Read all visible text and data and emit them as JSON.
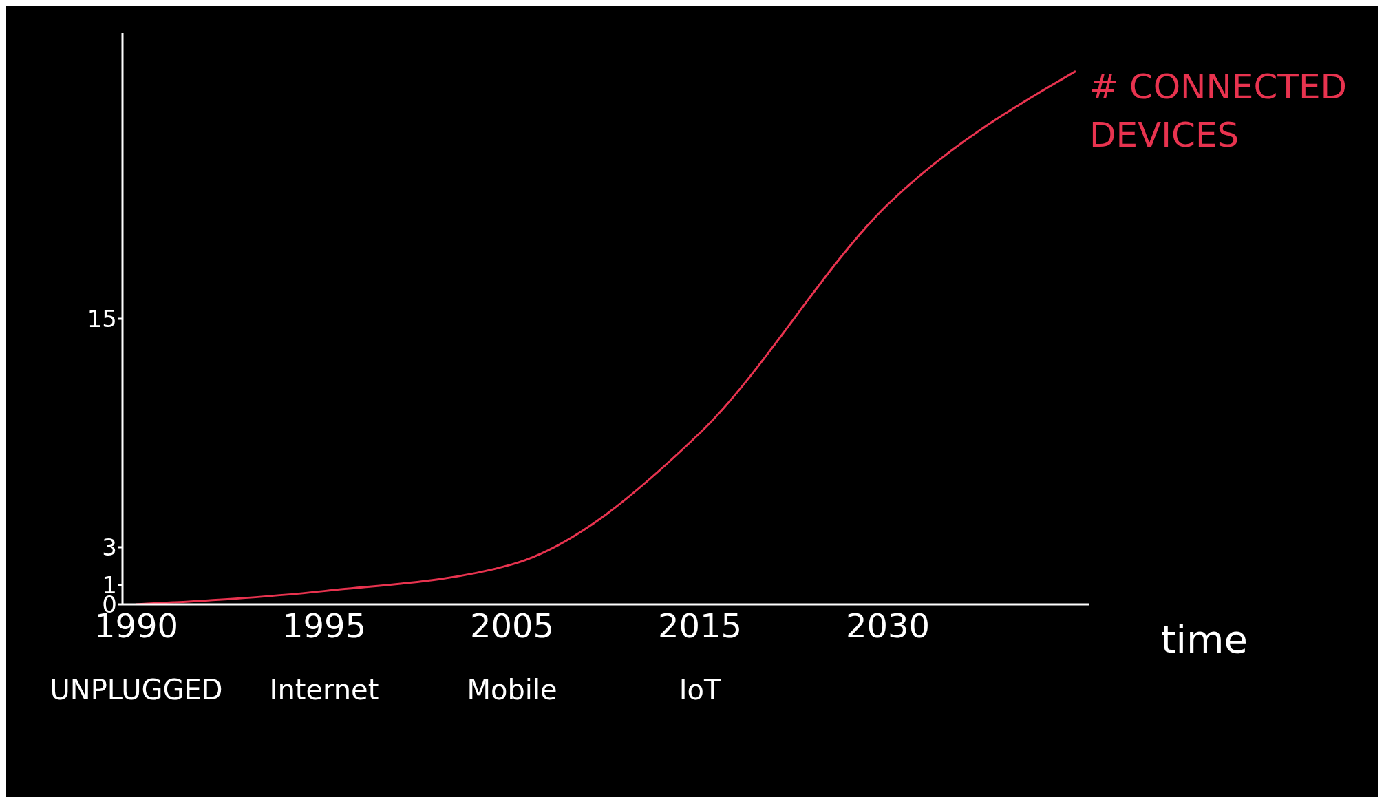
{
  "chart_data": {
    "type": "line",
    "xlabel": "time",
    "categories": [
      "1990\nUNPLUGGED",
      "1995\nInternet",
      "2005\nMobile",
      "2015\nIoT",
      "2030",
      null
    ],
    "series": [
      {
        "name": "# CONNECTED DEVICES",
        "color": "#e8334f",
        "values": [
          0,
          0.7,
          2.1,
          9,
          21,
          28
        ]
      }
    ],
    "ylim": [
      0,
      30
    ],
    "yticks": [
      0,
      1,
      3,
      15
    ],
    "marker": "none",
    "line_style": "solid"
  }
}
